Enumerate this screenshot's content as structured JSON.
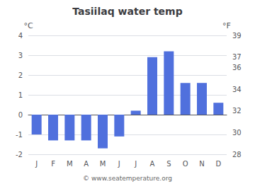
{
  "chart_data": {
    "type": "bar",
    "title": "Tasiilaq water temp",
    "categories": [
      "J",
      "F",
      "M",
      "A",
      "M",
      "J",
      "J",
      "A",
      "S",
      "O",
      "N",
      "D"
    ],
    "values": [
      -1.0,
      -1.3,
      -1.3,
      -1.3,
      -1.7,
      -1.1,
      0.2,
      2.9,
      3.2,
      1.6,
      1.6,
      0.6
    ],
    "ylabel": "°C",
    "y2label": "°F",
    "ylim": [
      -2.0,
      4.0
    ],
    "yticks": [
      -2.0,
      -1.0,
      0.0,
      1.0,
      2.0,
      3.0,
      4.0
    ],
    "y2lim": [
      28,
      39
    ],
    "y2ticks": [
      28,
      30,
      32,
      34,
      36,
      37,
      39
    ],
    "grid": true,
    "annotations": [
      "© www.seatemperature.org"
    ]
  }
}
